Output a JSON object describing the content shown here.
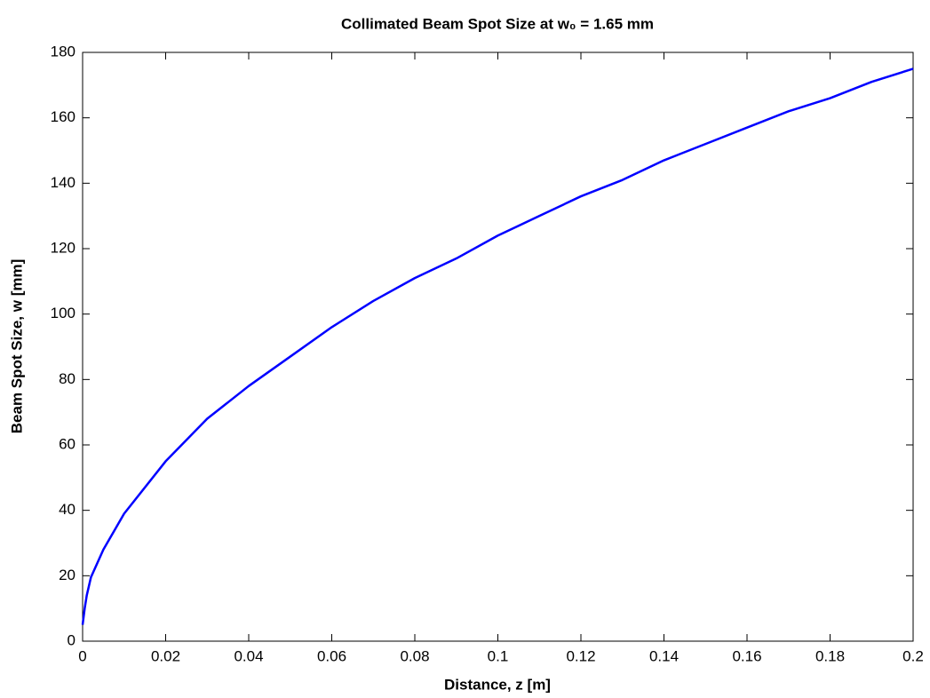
{
  "chart_data": {
    "type": "line",
    "title": "Collimated Beam Spot Size at w₀ = 1.65 mm",
    "x_label": "Distance, z [m]",
    "y_label": "Beam Spot Size, w [mm]",
    "x": [
      0,
      0.0005,
      0.001,
      0.002,
      0.005,
      0.01,
      0.02,
      0.03,
      0.04,
      0.05,
      0.06,
      0.07,
      0.08,
      0.09,
      0.1,
      0.11,
      0.12,
      0.13,
      0.14,
      0.15,
      0.16,
      0.17,
      0.18,
      0.19,
      0.2
    ],
    "series": [
      {
        "color": "#0000ff",
        "values": [
          5,
          10,
          14,
          19.5,
          28,
          39,
          55,
          68,
          78,
          87,
          96,
          104,
          111,
          117,
          124,
          130,
          136,
          141,
          147,
          152,
          157,
          162,
          166,
          171,
          175
        ]
      }
    ],
    "xlim": [
      0,
      0.2
    ],
    "ylim": [
      0,
      180
    ],
    "xticks": [
      0,
      0.02,
      0.04,
      0.06,
      0.08,
      0.1,
      0.12,
      0.14,
      0.16,
      0.18,
      0.2
    ],
    "yticks": [
      0,
      20,
      40,
      60,
      80,
      100,
      120,
      140,
      160,
      180
    ],
    "grid": false
  }
}
